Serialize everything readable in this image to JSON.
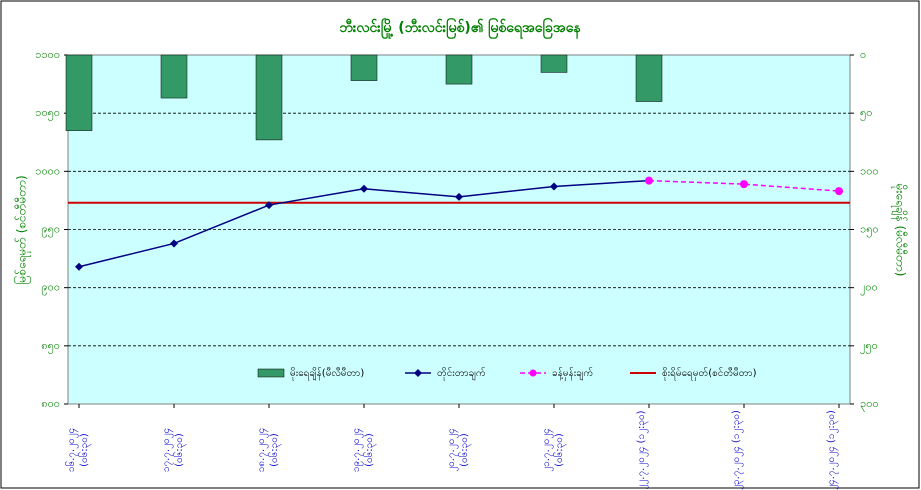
{
  "chart_data": {
    "type": "combo",
    "title": "ဘီးလင်းမြို့ (ဘီးလင်းမြစ်)၏ မြစ်ရေအခြေအနေ",
    "ylabel": "မြစ်ရေမှတ် (စင်တီမီတာ)",
    "y2label": "မိုးရေချိန် (မီလီမီတာ)",
    "categories": [
      "၁၆.၇.၂၀၂၄ (၀၆:၃၀)",
      "၁၇.၇.၂၀၂၄ (၀၆:၃၀)",
      "၁၈.၇.၂၀၂၄ (၀၆:၃၀)",
      "၁၉.၇.၂၀၂၄ (၀၆:၃၀)",
      "၂၀.၇.၂၀၂၄ (၀၆:၃၀)",
      "၂၁.၇.၂၀၂၄ (၀၆:၃၀)",
      "၂၂.၇.၂၀၂၄ (၁၂:၃၀)",
      "၂၃.၇.၂၀၂၄ (၁၂:၃၀)",
      "၂၄.၇.၂၀၂၄ (၁၂:၃၀)"
    ],
    "series": [
      {
        "name": "မိုးရေချိန်(မီလီမီတာ)",
        "type": "bar",
        "axis": "y2",
        "color": "#339966",
        "values": [
          65,
          37,
          73,
          22,
          25,
          15,
          40,
          null,
          null
        ]
      },
      {
        "name": "တိုင်းတာချက်",
        "type": "line",
        "color": "#000080",
        "values": [
          918,
          938,
          971,
          985,
          978,
          987,
          992,
          null,
          null
        ]
      },
      {
        "name": "ခန့်မှန်းချက်",
        "type": "line",
        "dashed": true,
        "color": "#ff00ff",
        "values": [
          null,
          null,
          null,
          null,
          null,
          null,
          992,
          989,
          983
        ]
      }
    ],
    "reference_line": {
      "name": "စိုးရိမ်ရေမှတ်(စင်တီမီတာ)",
      "color": "#cc0000",
      "value": 973
    },
    "ylim": [
      800,
      1100
    ],
    "yticks": [
      {
        "value": 800,
        "label": "၈၀၀"
      },
      {
        "value": 850,
        "label": "၈၅၀"
      },
      {
        "value": 900,
        "label": "၉၀၀"
      },
      {
        "value": 950,
        "label": "၉၅၀"
      },
      {
        "value": 1000,
        "label": "၁၀၀၀"
      },
      {
        "value": 1050,
        "label": "၁၀၅၀"
      },
      {
        "value": 1100,
        "label": "၁၁၀၀"
      }
    ],
    "y2lim": [
      0,
      300
    ],
    "y2_reversed": true,
    "y2ticks": [
      {
        "value": 0,
        "label": "၀"
      },
      {
        "value": 50,
        "label": "၅၀"
      },
      {
        "value": 100,
        "label": "၁၀၀"
      },
      {
        "value": 150,
        "label": "၁၅၀"
      },
      {
        "value": 200,
        "label": "၂၀၀"
      },
      {
        "value": 250,
        "label": "၂၅၀"
      },
      {
        "value": 300,
        "label": "၃၀၀"
      }
    ],
    "grid": true,
    "legend": "inside-bottom"
  }
}
